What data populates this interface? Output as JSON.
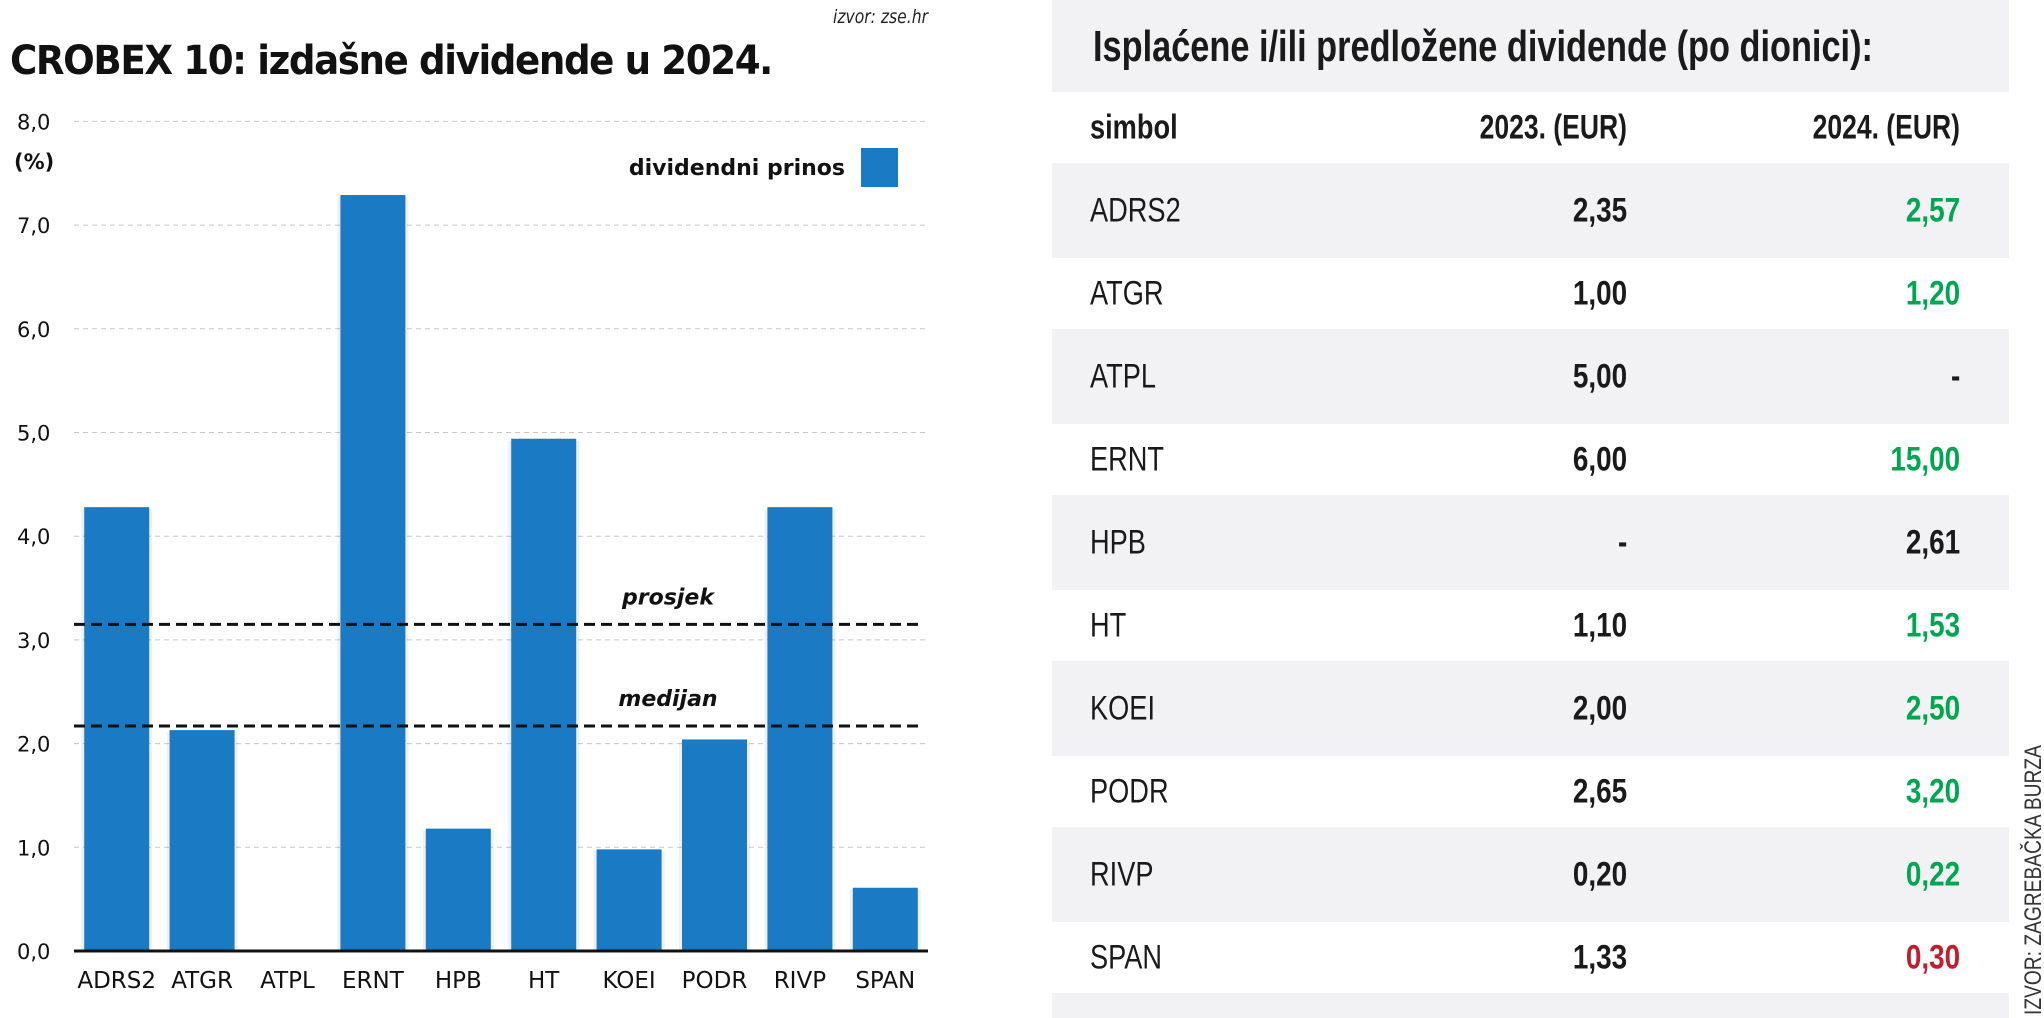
{
  "chart_title": "CROBEX 10: izdašne dividende u 2024.",
  "chart_source": "izvor: zse.hr",
  "chart_data": {
    "type": "bar",
    "title": "CROBEX 10: izdašne dividende u 2024.",
    "xlabel": "",
    "ylabel": "(%)",
    "ylim": [
      0,
      8
    ],
    "yticks": [
      0,
      1,
      2,
      3,
      4,
      5,
      6,
      7,
      8
    ],
    "ytick_labels": [
      "0,0",
      "1,0",
      "2,0",
      "3,0",
      "4,0",
      "5,0",
      "6,0",
      "7,0",
      "8,0"
    ],
    "grid": true,
    "categories": [
      "ADRS2",
      "ATGR",
      "ATPL",
      "ERNT",
      "HPB",
      "HT",
      "KOEI",
      "PODR",
      "RIVP",
      "SPAN"
    ],
    "series": [
      {
        "name": "dividendni prinos",
        "color": "#1a7bc4",
        "values": [
          4.28,
          2.13,
          0.0,
          7.29,
          1.18,
          4.94,
          0.98,
          2.04,
          4.28,
          0.61
        ]
      }
    ],
    "legend": {
      "position": "top-right",
      "label": "dividendni prinos"
    },
    "reference_lines": [
      {
        "label": "prosjek",
        "value": 3.15
      },
      {
        "label": "medijan",
        "value": 2.17
      }
    ]
  },
  "table": {
    "title": "Isplaćene i/ili predložene dividende (po dionici):",
    "headers": [
      "simbol",
      "2023. (EUR)",
      "2024. (EUR)"
    ],
    "rows": [
      {
        "symbol": "ADRS2",
        "v2023": "2,35",
        "v2024": "2,57",
        "color2024": "#00a651"
      },
      {
        "symbol": "ATGR",
        "v2023": "1,00",
        "v2024": "1,20",
        "color2024": "#00a651"
      },
      {
        "symbol": "ATPL",
        "v2023": "5,00",
        "v2024": "-",
        "color2024": "#1a1a1a"
      },
      {
        "symbol": "ERNT",
        "v2023": "6,00",
        "v2024": "15,00",
        "color2024": "#00a651"
      },
      {
        "symbol": "HPB",
        "v2023": "-",
        "v2024": "2,61",
        "color2024": "#1a1a1a"
      },
      {
        "symbol": "HT",
        "v2023": "1,10",
        "v2024": "1,53",
        "color2024": "#00a651"
      },
      {
        "symbol": "KOEI",
        "v2023": "2,00",
        "v2024": "2,50",
        "color2024": "#00a651"
      },
      {
        "symbol": "PODR",
        "v2023": "2,65",
        "v2024": "3,20",
        "color2024": "#00a651"
      },
      {
        "symbol": "RIVP",
        "v2023": "0,20",
        "v2024": "0,22",
        "color2024": "#00a651"
      },
      {
        "symbol": "SPAN",
        "v2023": "1,33",
        "v2024": "0,30",
        "color2024": "#c0202e"
      }
    ]
  },
  "side_credit": "IZVOR: ZAGREBAČKA BURZA"
}
